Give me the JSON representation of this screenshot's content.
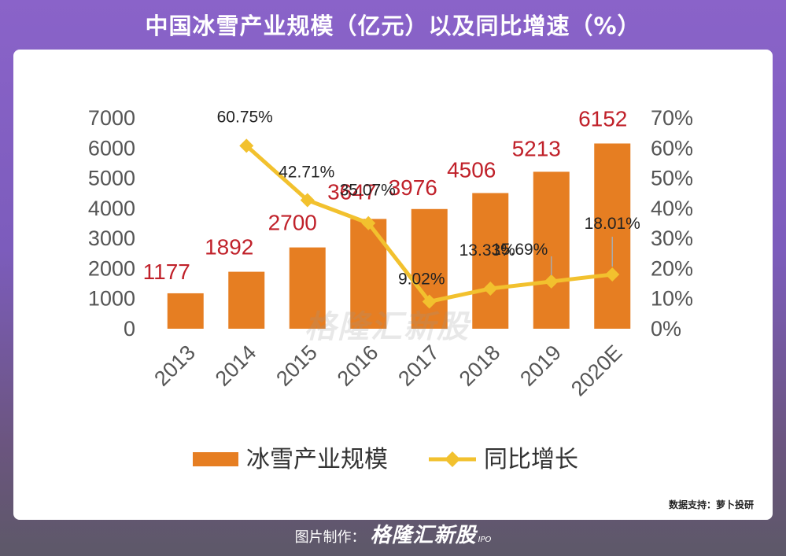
{
  "header": {
    "title": "中国冰雪产业规模（亿元）以及同比增速（%）"
  },
  "source": {
    "label": "数据支持：萝卜投研"
  },
  "footer": {
    "prefix": "图片制作：",
    "brand": "格隆汇新股",
    "brand_sub": "IPO"
  },
  "watermark": {
    "text": "格隆汇新股"
  },
  "colors": {
    "bar": "#e67e22",
    "line": "#f2c12e",
    "bar_label": "#c0212a",
    "axis_text": "#555555"
  },
  "chart_data": {
    "type": "bar",
    "title": "中国冰雪产业规模（亿元）以及同比增速（%）",
    "categories": [
      "2013",
      "2014",
      "2015",
      "2016",
      "2017",
      "2018",
      "2019",
      "2020E"
    ],
    "series": [
      {
        "name": "冰雪产业规模",
        "type": "bar",
        "axis": "left",
        "values": [
          1177,
          1892,
          2700,
          3647,
          3976,
          4506,
          5213,
          6152
        ],
        "labels": [
          "1177",
          "1892",
          "2700",
          "3647",
          "3976",
          "4506",
          "5213",
          "6152"
        ]
      },
      {
        "name": "同比增长",
        "type": "line",
        "axis": "right",
        "values": [
          null,
          60.75,
          42.71,
          35.07,
          9.02,
          13.33,
          15.69,
          18.01
        ],
        "labels": [
          "",
          "60.75%",
          "42.71%",
          "35.07%",
          "9.02%",
          "13.33%",
          "15.69%",
          "18.01%"
        ]
      }
    ],
    "ylim_left": [
      0,
      7000
    ],
    "ylim_right": [
      0,
      70
    ],
    "yticks_left": [
      "0",
      "1000",
      "2000",
      "3000",
      "4000",
      "5000",
      "6000",
      "7000"
    ],
    "yticks_right": [
      "0%",
      "10%",
      "20%",
      "30%",
      "40%",
      "50%",
      "60%",
      "70%"
    ],
    "legend": {
      "position": "bottom",
      "items": [
        "冰雪产业规模",
        "同比增长"
      ]
    },
    "grid": false
  }
}
